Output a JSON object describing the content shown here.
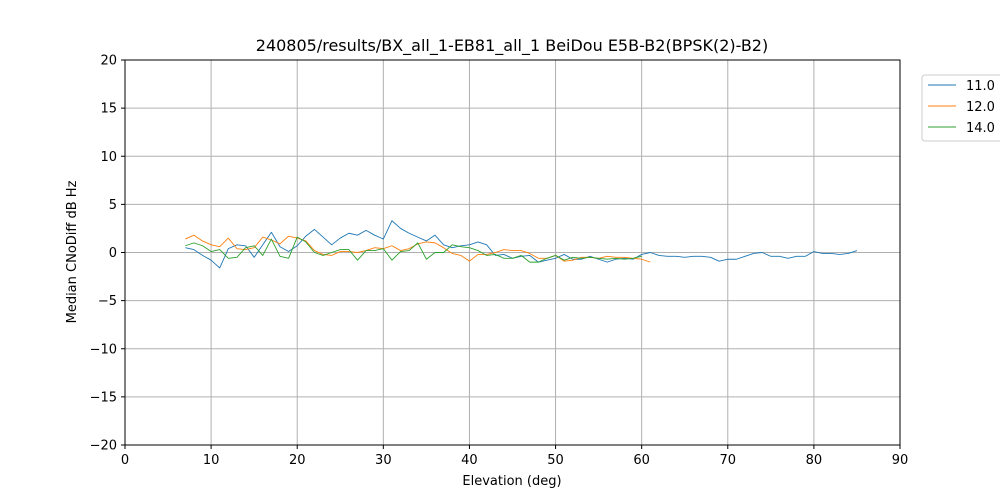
{
  "chart_data": {
    "type": "line",
    "title": "240805/results/BX_all_1-EB81_all_1 BeiDou E5B-B2(BPSK(2)-B2)",
    "xlabel": "Elevation (deg)",
    "ylabel": "Median CNoDiff dB Hz",
    "xlim": [
      0,
      90
    ],
    "ylim": [
      -20,
      20
    ],
    "xticks": [
      0,
      10,
      20,
      30,
      40,
      50,
      60,
      70,
      80,
      90
    ],
    "yticks": [
      -20,
      -15,
      -10,
      -5,
      0,
      5,
      10,
      15,
      20
    ],
    "grid": true,
    "legend_position": "outside-top-right",
    "series": [
      {
        "name": "11.0",
        "color": "#1f77b4",
        "x": [
          7,
          8,
          9,
          10,
          11,
          12,
          13,
          14,
          15,
          16,
          17,
          18,
          19,
          20,
          21,
          22,
          23,
          24,
          25,
          26,
          27,
          28,
          29,
          30,
          31,
          32,
          33,
          34,
          35,
          36,
          37,
          38,
          39,
          40,
          41,
          42,
          43,
          44,
          45,
          46,
          47,
          48,
          49,
          50,
          51,
          52,
          53,
          54,
          55,
          56,
          57,
          58,
          59,
          60,
          61,
          62,
          63,
          64,
          65,
          66,
          67,
          68,
          69,
          70,
          71,
          72,
          73,
          74,
          75,
          76,
          77,
          78,
          79,
          80,
          81,
          82,
          83,
          84,
          85
        ],
        "y": [
          0.5,
          0.3,
          -0.3,
          -0.8,
          -1.6,
          0.4,
          0.8,
          0.7,
          -0.5,
          0.8,
          2.1,
          0.6,
          0.1,
          0.7,
          1.7,
          2.4,
          1.6,
          0.8,
          1.5,
          2.0,
          1.8,
          2.3,
          1.8,
          1.4,
          3.3,
          2.5,
          2.0,
          1.6,
          1.2,
          1.8,
          0.8,
          0.5,
          0.7,
          0.8,
          1.1,
          0.8,
          -0.3,
          -0.2,
          -0.6,
          -0.4,
          -0.3,
          -1.0,
          -0.8,
          -0.6,
          -0.2,
          -0.7,
          -0.7,
          -0.4,
          -0.7,
          -1.0,
          -0.7,
          -0.6,
          -0.7,
          -0.2,
          0.0,
          -0.3,
          -0.4,
          -0.4,
          -0.5,
          -0.4,
          -0.4,
          -0.5,
          -0.9,
          -0.7,
          -0.7,
          -0.4,
          -0.1,
          0.0,
          -0.4,
          -0.4,
          -0.6,
          -0.4,
          -0.4,
          0.1,
          -0.1,
          -0.1,
          -0.2,
          -0.1,
          0.2
        ]
      },
      {
        "name": "12.0",
        "color": "#ff7f0e",
        "x": [
          7,
          8,
          9,
          10,
          11,
          12,
          13,
          14,
          15,
          16,
          17,
          18,
          19,
          20,
          21,
          22,
          23,
          24,
          25,
          26,
          27,
          28,
          29,
          30,
          31,
          32,
          33,
          34,
          35,
          36,
          37,
          38,
          39,
          40,
          41,
          42,
          43,
          44,
          45,
          46,
          47,
          48,
          49,
          50,
          51,
          52,
          53,
          54,
          55,
          56,
          57,
          58,
          59,
          60,
          61
        ],
        "y": [
          1.4,
          1.8,
          1.2,
          0.8,
          0.6,
          1.5,
          0.4,
          0.3,
          0.5,
          1.6,
          1.3,
          0.9,
          1.7,
          1.5,
          1.2,
          0.2,
          -0.2,
          -0.3,
          0.1,
          0.1,
          0.0,
          0.2,
          0.5,
          0.4,
          0.7,
          0.2,
          0.4,
          0.9,
          1.1,
          1.0,
          0.5,
          -0.1,
          -0.3,
          -0.9,
          -0.2,
          -0.2,
          0.0,
          0.3,
          0.2,
          0.2,
          -0.1,
          -0.6,
          -0.6,
          -0.3,
          -0.9,
          -0.8,
          -0.5,
          -0.5,
          -0.6,
          -0.4,
          -0.5,
          -0.5,
          -0.6,
          -0.7,
          -1.0
        ]
      },
      {
        "name": "14.0",
        "color": "#2ca02c",
        "x": [
          7,
          8,
          9,
          10,
          11,
          12,
          13,
          14,
          15,
          16,
          17,
          18,
          19,
          20,
          21,
          22,
          23,
          24,
          25,
          26,
          27,
          28,
          29,
          30,
          31,
          32,
          33,
          34,
          35,
          36,
          37,
          38,
          39,
          40,
          41,
          42,
          43,
          44,
          45,
          46,
          47,
          48,
          49,
          50,
          51,
          52,
          53,
          54,
          55,
          56,
          57,
          58,
          59,
          60
        ],
        "y": [
          0.7,
          1.0,
          0.7,
          0.1,
          0.3,
          -0.6,
          -0.5,
          0.5,
          0.7,
          -0.3,
          1.4,
          -0.4,
          -0.6,
          1.6,
          1.1,
          0.0,
          -0.3,
          0.0,
          0.3,
          0.3,
          -0.8,
          0.2,
          0.2,
          0.4,
          -0.8,
          0.1,
          0.2,
          1.0,
          -0.7,
          0.0,
          0.0,
          0.8,
          0.6,
          0.5,
          0.2,
          -0.3,
          -0.2,
          -0.6,
          -0.6,
          -0.3,
          -1.0,
          -1.0,
          -0.6,
          -0.3,
          -0.8,
          -0.5,
          -0.6,
          -0.5,
          -0.6,
          -0.7,
          -0.6,
          -0.7,
          -0.6,
          -0.4
        ]
      }
    ]
  }
}
